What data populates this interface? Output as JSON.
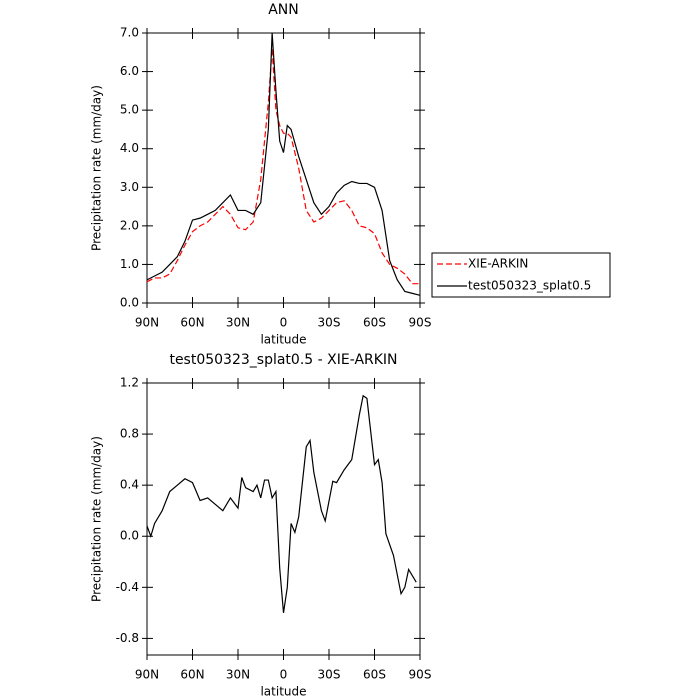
{
  "chart_data": [
    {
      "type": "line",
      "title": "ANN",
      "x_label": "latitude",
      "y_label": "Precipitation rate (mm/day)",
      "x": [
        90,
        85,
        80,
        75,
        70,
        65,
        60,
        55,
        50,
        45,
        40,
        35,
        30,
        25,
        20,
        15,
        10,
        7.5,
        5,
        2.5,
        0,
        -2.5,
        -5,
        -10,
        -15,
        -20,
        -25,
        -30,
        -35,
        -40,
        -45,
        -50,
        -55,
        -60,
        -65,
        -70,
        -75,
        -80,
        -85,
        -90
      ],
      "series": [
        {
          "name": "XIE-ARKIN",
          "color": "#ff0000",
          "dash": "dashed",
          "values": [
            0.55,
            0.65,
            0.65,
            0.75,
            1.1,
            1.5,
            1.85,
            2.0,
            2.1,
            2.3,
            2.5,
            2.3,
            1.95,
            1.9,
            2.1,
            3.2,
            5.2,
            6.6,
            5.0,
            4.6,
            4.4,
            4.4,
            4.3,
            3.5,
            2.4,
            2.1,
            2.2,
            2.4,
            2.6,
            2.65,
            2.4,
            2.0,
            1.95,
            1.8,
            1.3,
            1.0,
            0.9,
            0.75,
            0.5,
            0.5
          ]
        },
        {
          "name": "test050323_splat0.5",
          "color": "#000000",
          "dash": "solid",
          "values": [
            0.6,
            0.7,
            0.8,
            1.0,
            1.2,
            1.6,
            2.15,
            2.2,
            2.3,
            2.4,
            2.6,
            2.8,
            2.4,
            2.4,
            2.3,
            2.6,
            4.5,
            7.0,
            5.5,
            4.2,
            3.9,
            4.6,
            4.5,
            3.8,
            3.2,
            2.6,
            2.3,
            2.5,
            2.85,
            3.05,
            3.15,
            3.1,
            3.1,
            3.0,
            2.4,
            1.1,
            0.6,
            0.3,
            0.25,
            0.2
          ]
        }
      ],
      "xlim": [
        90,
        -90
      ],
      "xticks": [
        {
          "value": 90,
          "label": "90N"
        },
        {
          "value": 60,
          "label": "60N"
        },
        {
          "value": 30,
          "label": "30N"
        },
        0,
        {
          "value": -30,
          "label": "30S"
        },
        {
          "value": -60,
          "label": "60S"
        },
        {
          "value": -90,
          "label": "90S"
        }
      ],
      "ylim": [
        0,
        7
      ],
      "yticks": [
        {
          "value": 0,
          "label": "0.0"
        },
        {
          "value": 1,
          "label": "1.0"
        },
        {
          "value": 2,
          "label": "2.0"
        },
        {
          "value": 3,
          "label": "3.0"
        },
        {
          "value": 4,
          "label": "4.0"
        },
        {
          "value": 5,
          "label": "5.0"
        },
        {
          "value": 6,
          "label": "6.0"
        },
        {
          "value": 7,
          "label": "7.0"
        }
      ],
      "grid": false,
      "legend": "right"
    },
    {
      "type": "line",
      "title": "test050323_splat0.5 - XIE-ARKIN",
      "x_label": "latitude",
      "y_label": "Precipitation rate (mm/day)",
      "x": [
        90,
        87.5,
        85,
        80,
        75,
        70,
        65,
        60,
        55,
        50,
        45,
        40,
        35,
        30,
        27.5,
        25,
        20,
        17.5,
        15,
        12.5,
        10,
        7.5,
        5,
        2.5,
        0,
        -2.5,
        -5,
        -7.5,
        -10,
        -15,
        -17.5,
        -20,
        -25,
        -27.5,
        -32.5,
        -35,
        -40,
        -45,
        -50,
        -52.5,
        -55,
        -60,
        -62.5,
        -65,
        -67.5,
        -72.5,
        -77.5,
        -80,
        -82.5,
        -87.5
      ],
      "series": [
        {
          "color": "#000000",
          "dash": "solid",
          "values": [
            0.08,
            0.0,
            0.1,
            0.2,
            0.35,
            0.4,
            0.45,
            0.42,
            0.28,
            0.3,
            0.25,
            0.2,
            0.3,
            0.22,
            0.46,
            0.38,
            0.35,
            0.4,
            0.3,
            0.44,
            0.44,
            0.3,
            0.35,
            -0.25,
            -0.6,
            -0.4,
            0.1,
            0.03,
            0.15,
            0.7,
            0.75,
            0.5,
            0.2,
            0.12,
            0.43,
            0.42,
            0.52,
            0.6,
            0.95,
            1.1,
            1.08,
            0.56,
            0.6,
            0.42,
            0.02,
            -0.15,
            -0.45,
            -0.4,
            -0.26,
            -0.36
          ]
        }
      ],
      "xlim": [
        90,
        -90
      ],
      "xticks": [
        {
          "value": 90,
          "label": "90N"
        },
        {
          "value": 60,
          "label": "60N"
        },
        {
          "value": 30,
          "label": "30N"
        },
        0,
        {
          "value": -30,
          "label": "30S"
        },
        {
          "value": -60,
          "label": "60S"
        },
        {
          "value": -90,
          "label": "90S"
        }
      ],
      "ylim": [
        -0.93,
        1.2
      ],
      "yticks": [
        -0.8,
        -0.4,
        {
          "value": 0,
          "label": "0.0"
        },
        0.4,
        0.8,
        1.2
      ],
      "grid": false
    }
  ]
}
